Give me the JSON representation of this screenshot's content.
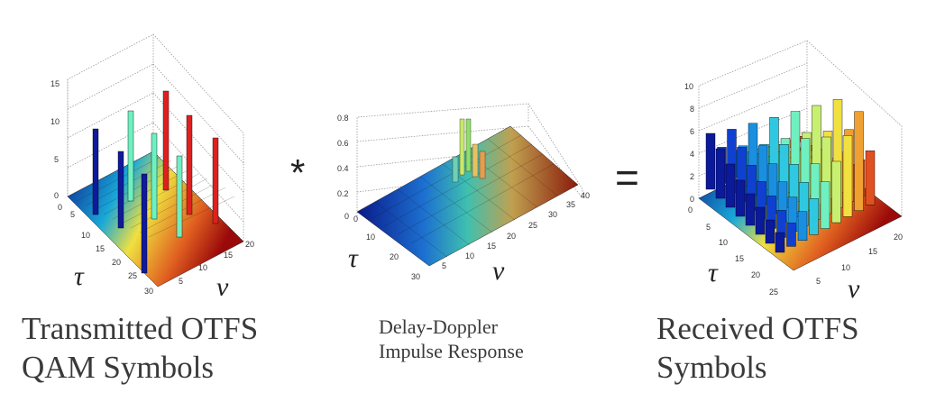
{
  "operators": {
    "convolution": "*",
    "equals": "="
  },
  "captions": {
    "left": [
      "Transmitted OTFS",
      "QAM Symbols"
    ],
    "middle": [
      "Delay-Doppler",
      "Impulse Response"
    ],
    "right": [
      "Received OTFS",
      "Symbols"
    ]
  },
  "axis_symbols": {
    "tau": "τ",
    "nu": "ν"
  },
  "chart_data": [
    {
      "type": "3d-bar",
      "z_ticks": [
        "0",
        "5",
        "10",
        "15"
      ],
      "tau_ticks": [
        "0",
        "5",
        "10",
        "15",
        "20",
        "25",
        "30"
      ],
      "nu_ticks": [
        "5",
        "10",
        "15",
        "20"
      ],
      "spikes": [
        {
          "tau": 6,
          "nu": 2,
          "z": 10
        },
        {
          "tau": 16,
          "nu": 2,
          "z": 9
        },
        {
          "tau": 26,
          "nu": 2,
          "z": 9
        },
        {
          "tau": 6,
          "nu": 10,
          "z": 12
        },
        {
          "tau": 16,
          "nu": 10,
          "z": 10
        },
        {
          "tau": 26,
          "nu": 10,
          "z": 9
        },
        {
          "tau": 6,
          "nu": 18,
          "z": 14
        },
        {
          "tau": 16,
          "nu": 18,
          "z": 12
        },
        {
          "tau": 26,
          "nu": 18,
          "z": 11
        }
      ]
    },
    {
      "type": "3d-surface",
      "z_ticks": [
        "0",
        "0.2",
        "0.4",
        "0.6",
        "0.8"
      ],
      "tau_ticks": [
        "0",
        "10",
        "20",
        "30"
      ],
      "nu_ticks": [
        "5",
        "10",
        "15",
        "20",
        "25",
        "30",
        "35",
        "40"
      ],
      "peaks": [
        {
          "tau": 5,
          "nu": 20,
          "z": 0.8
        },
        {
          "tau": 7,
          "nu": 22,
          "z": 0.45
        },
        {
          "tau": 9,
          "nu": 19,
          "z": 0.3
        }
      ]
    },
    {
      "type": "3d-bar",
      "z_ticks": [
        "0",
        "2",
        "4",
        "6",
        "8",
        "10"
      ],
      "tau_ticks": [
        "0",
        "5",
        "10",
        "15",
        "20",
        "25"
      ],
      "nu_ticks": [
        "5",
        "10",
        "15",
        "20"
      ]
    }
  ]
}
